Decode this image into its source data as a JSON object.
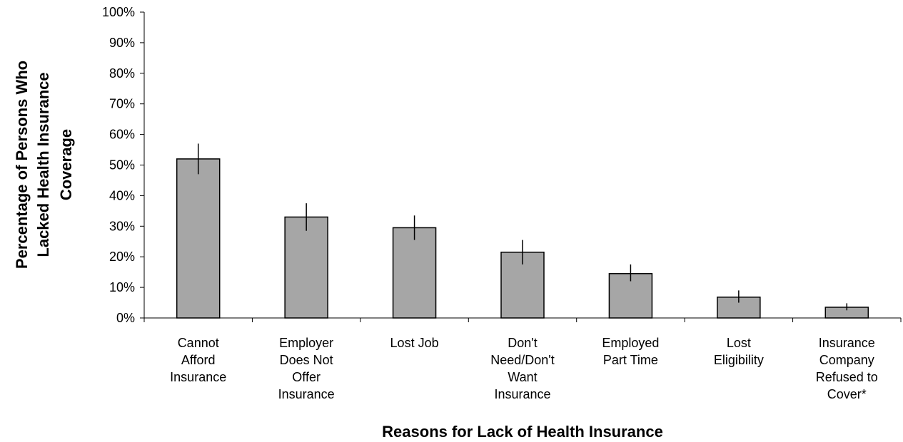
{
  "chart_data": {
    "type": "bar",
    "categories": [
      [
        "Cannot",
        "Afford",
        "Insurance"
      ],
      [
        "Employer",
        "Does Not",
        "Offer",
        "Insurance"
      ],
      [
        "Lost Job"
      ],
      [
        "Don't",
        "Need/Don't",
        "Want",
        "Insurance"
      ],
      [
        "Employed",
        "Part Time"
      ],
      [
        "Lost",
        "Eligibility"
      ],
      [
        "Insurance",
        "Company",
        "Refused to",
        "Cover*"
      ]
    ],
    "values": [
      52.0,
      33.0,
      29.5,
      21.5,
      14.5,
      6.8,
      3.5
    ],
    "error_low": [
      47.0,
      28.5,
      25.5,
      17.5,
      12.0,
      5.0,
      2.5
    ],
    "error_high": [
      57.0,
      37.5,
      33.5,
      25.5,
      17.5,
      9.0,
      4.8
    ],
    "ylim": [
      0,
      100
    ],
    "yticks": [
      0,
      10,
      20,
      30,
      40,
      50,
      60,
      70,
      80,
      90,
      100
    ],
    "ytick_labels": [
      "0%",
      "10%",
      "20%",
      "30%",
      "40%",
      "50%",
      "60%",
      "70%",
      "80%",
      "90%",
      "100%"
    ],
    "xlabel": "Reasons for Lack of Health Insurance",
    "ylabel_lines": [
      "Percentage of Persons Who",
      "Lacked Health Insurance",
      "Coverage"
    ],
    "bar_color": "#a6a6a6",
    "bar_edge_color": "#000000",
    "grid": false
  }
}
